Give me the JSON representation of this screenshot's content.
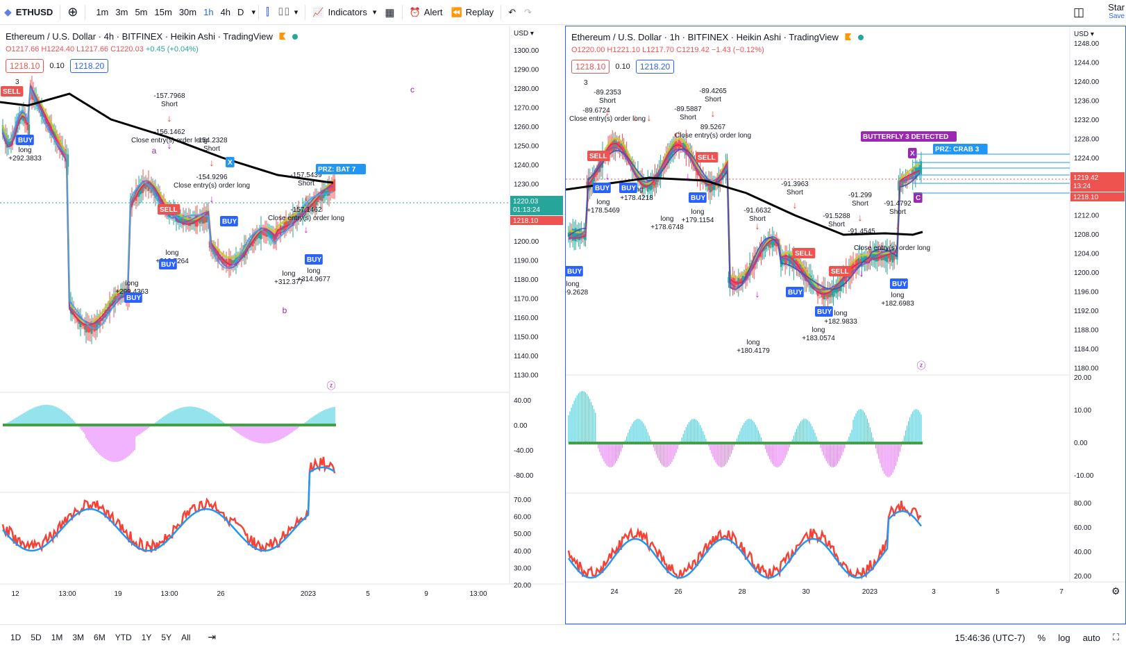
{
  "toolbar": {
    "symbol": "ETHUSD",
    "timeframes": [
      "1m",
      "3m",
      "5m",
      "15m",
      "30m",
      "1h",
      "4h",
      "D"
    ],
    "active_timeframe": "1h",
    "indicators_label": "Indicators",
    "alert_label": "Alert",
    "replay_label": "Replay",
    "star_label": "Star",
    "save_label": "Save"
  },
  "left_chart": {
    "title": "Ethereum / U.S. Dollar · 4h · BITFINEX · Heikin Ashi · TradingView",
    "ohlc": {
      "o": "O1217.66",
      "h": "H1224.40",
      "l": "L1217.66",
      "c": "C1220.03",
      "chg": "+0.45 (+0.04%)"
    },
    "sell_price": "1218.10",
    "spread": "0.10",
    "buy_price": "1218.20",
    "currency": "USD",
    "price_axis": [
      "1300.00",
      "1290.00",
      "1280.00",
      "1270.00",
      "1260.00",
      "1250.00",
      "1240.00",
      "1230.00",
      "1220.00",
      "1210.00",
      "1200.00",
      "1190.00",
      "1180.00",
      "1170.00",
      "1160.00",
      "1150.00",
      "1140.00",
      "1130.00"
    ],
    "last_price": "1220.03",
    "countdown": "01:13:24",
    "last_price2": "1218.10",
    "time_axis": [
      "12",
      "13:00",
      "19",
      "13:00",
      "26",
      "2023",
      "5",
      "9",
      "13:00"
    ],
    "macd_axis": [
      "40.00",
      "0.00",
      "-40.00",
      "-80.00"
    ],
    "rsi_axis": [
      "70.00",
      "60.00",
      "50.00",
      "40.00",
      "30.00",
      "20.00"
    ],
    "labels": {
      "prz": "PRZ: BAT 7",
      "a": "a",
      "b": "b",
      "c": "c",
      "s1": "-157.7968",
      "s1b": "Short",
      "s2": "-156.1462",
      "s2b": "Close entry(s) order long",
      "s3": "-154.2328",
      "s3b": "Short",
      "s4": "-154.9296",
      "s4b": "Close entry(s) order long",
      "s5": "-157.5439",
      "s5b": "Short",
      "s6": "-157.1462",
      "s6b": "Close entry(s) order long",
      "l1": "long",
      "l1b": "+292.3833",
      "l2": "long",
      "l2b": "+299.4363",
      "l3": "long",
      "l3b": "+312.7264",
      "l4": "long",
      "l4b": "+312.377",
      "l5": "long",
      "l5b": "+314.9677",
      "buy": "BUY",
      "sell": "SELL",
      "x": "X",
      "num": "3"
    }
  },
  "right_chart": {
    "title": "Ethereum / U.S. Dollar · 1h · BITFINEX · Heikin Ashi · TradingView",
    "ohlc": {
      "o": "O1220.00",
      "h": "H1221.10",
      "l": "L1217.70",
      "c": "C1219.42",
      "chg": "−1.43 (−0.12%)"
    },
    "sell_price": "1218.10",
    "spread": "0.10",
    "buy_price": "1218.20",
    "currency": "USD",
    "price_axis": [
      "1248.00",
      "1244.00",
      "1240.00",
      "1236.00",
      "1232.00",
      "1228.00",
      "1224.00",
      "1220.00",
      "1216.00",
      "1212.00",
      "1208.00",
      "1204.00",
      "1200.00",
      "1196.00",
      "1192.00",
      "1188.00",
      "1184.00",
      "1180.00"
    ],
    "last_price": "1219.42",
    "countdown": "13:24",
    "last_price2": "1218.10",
    "time_axis": [
      "24",
      "26",
      "28",
      "30",
      "2023",
      "3",
      "5",
      "7"
    ],
    "macd_axis": [
      "20.00",
      "10.00",
      "0.00",
      "-10.00"
    ],
    "rsi_axis": [
      "80.00",
      "60.00",
      "40.00",
      "20.00"
    ],
    "labels": {
      "butterfly": "BUTTERFLY 3 DETECTED",
      "prz": "PRZ: CRAB 3",
      "x": "X",
      "c": "C",
      "num": "3",
      "s1": "-89.2353",
      "s1b": "Short",
      "s2": "-89.6724",
      "s2b": "Close entry(s) order long",
      "s3": "-89.4265",
      "s3b": "Short",
      "s4": "-89.5887",
      "s4b": "Short",
      "s5": "89.5267",
      "s5b": "Close entry(s) order long",
      "s6": "-91.3963",
      "s6b": "Short",
      "s7": "-91.299",
      "s7b": "Short",
      "s8": "-91.4792",
      "s8b": "Short",
      "s9": "-91.6632",
      "s9b": "Short",
      "s10": "-91.5288",
      "s10b": "Short",
      "s11": "-91.4545",
      "s11b": "Close entry(s) order long",
      "l1": "long",
      "l1b": "+178.5469",
      "l2": "long",
      "l2b": "+178.4218",
      "l3": "long",
      "l3b": "+178.6748",
      "l4": "long",
      "l4b": "+179.1154",
      "l5": "long",
      "l5b": "+182.9833",
      "l6": "long",
      "l6b": "+183.0574",
      "l7": "long",
      "l7b": "+180.4179",
      "l8": "long",
      "l8b": "+182.6983",
      "l9": "long",
      "l9b": "+9.2628",
      "buy": "BUY",
      "sell": "SELL"
    }
  },
  "bottom": {
    "ranges": [
      "1D",
      "5D",
      "1M",
      "3M",
      "6M",
      "YTD",
      "1Y",
      "5Y",
      "All"
    ],
    "time": "15:46:36 (UTC-7)",
    "pct": "%",
    "log": "log",
    "auto": "auto"
  }
}
